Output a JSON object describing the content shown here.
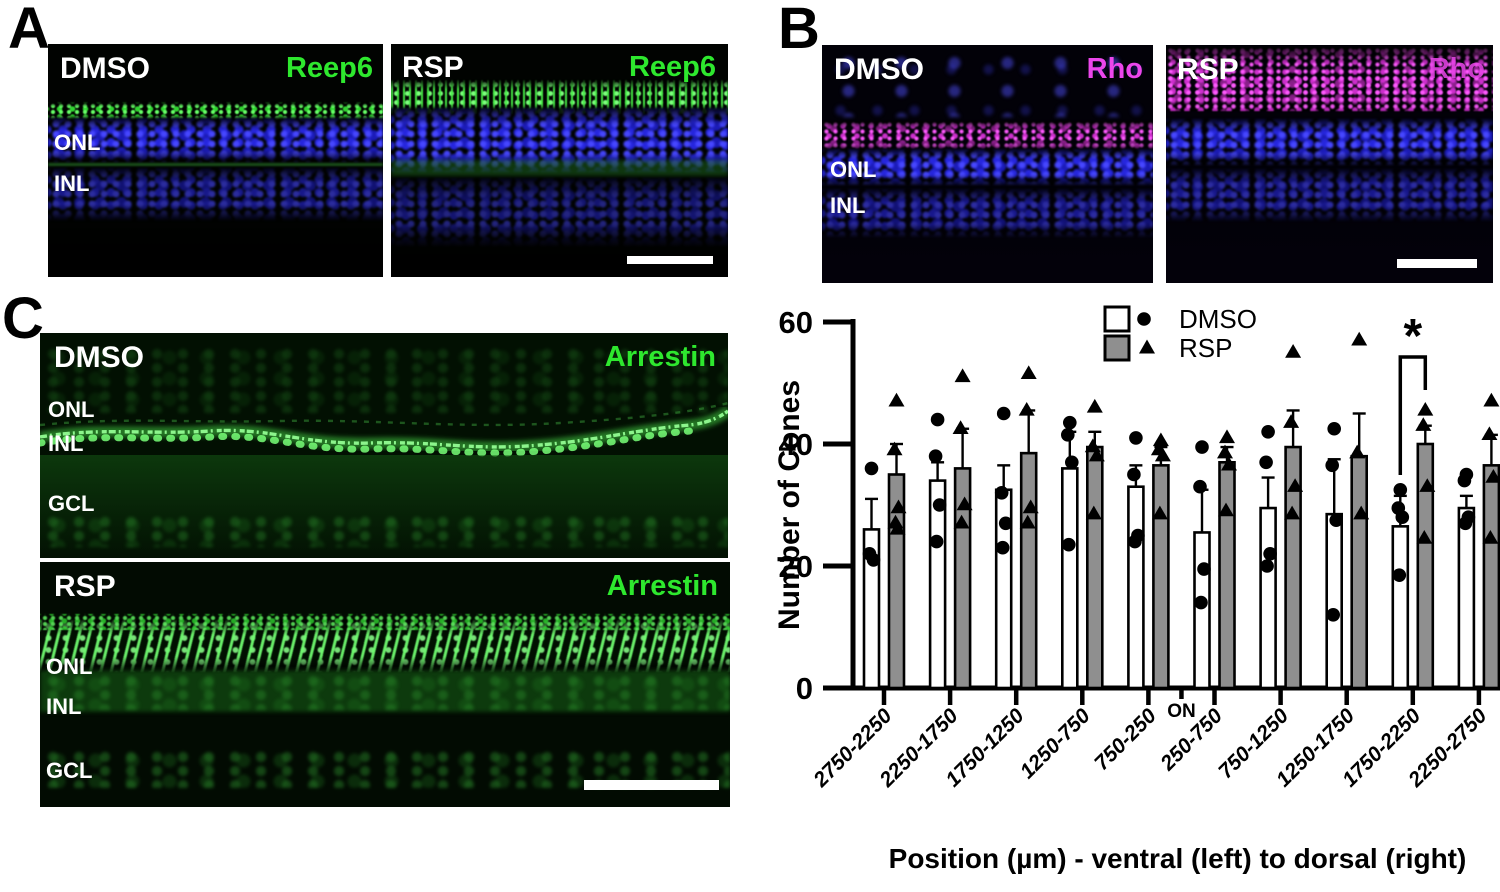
{
  "colors": {
    "green_label": "#2ee82e",
    "magenta_label": "#ec46ec",
    "blue_nuclei": "#2626dd",
    "dmso_bar": "#ffffff",
    "rsp_bar": "#8f8f8f",
    "axis": "#000000",
    "scalebar": "#ffffff"
  },
  "panels": {
    "A": {
      "letter": "A",
      "left": {
        "treatment": "DMSO",
        "marker": "Reep6",
        "layers": {
          "onl": "ONL",
          "inl": "INL"
        }
      },
      "right": {
        "treatment": "RSP",
        "marker": "Reep6",
        "has_scale_bar": true
      }
    },
    "B": {
      "letter": "B",
      "left": {
        "treatment": "DMSO",
        "marker": "Rho",
        "layers": {
          "onl": "ONL",
          "inl": "INL"
        }
      },
      "right": {
        "treatment": "RSP",
        "marker": "Rho",
        "has_scale_bar": true
      }
    },
    "C": {
      "letter": "C",
      "top": {
        "treatment": "DMSO",
        "marker": "Arrestin",
        "layers": {
          "onl": "ONL",
          "inl": "INL",
          "gcl": "GCL"
        }
      },
      "bottom": {
        "treatment": "RSP",
        "marker": "Arrestin",
        "layers": {
          "onl": "ONL",
          "inl": "INL",
          "gcl": "GCL"
        },
        "has_scale_bar": true
      }
    }
  },
  "chart_data": {
    "type": "bar",
    "title": "",
    "ylabel": "Number of Cones",
    "xlabel": "Position (µm) - ventral (left) to dorsal (right)",
    "ylim": [
      0,
      60
    ],
    "yticks": [
      0,
      20,
      40,
      60
    ],
    "grid": false,
    "legend_position": "top-center",
    "on_label": "ON",
    "on_between_indices": [
      4,
      5
    ],
    "categories": [
      "2750-2250",
      "2250-1750",
      "1750-1250",
      "1250-750",
      "750-250",
      "250-750",
      "750-1250",
      "1250-1750",
      "1750-2250",
      "2250-2750"
    ],
    "legend": {
      "items": [
        {
          "label": "DMSO",
          "fill": "#ffffff",
          "marker": "circle"
        },
        {
          "label": "RSP",
          "fill": "#8f8f8f",
          "marker": "triangle"
        }
      ]
    },
    "series": [
      {
        "name": "DMSO",
        "means": [
          26,
          34,
          32.5,
          36,
          33,
          25.5,
          29.5,
          28.5,
          26.5,
          29.5
        ],
        "sem": [
          5,
          3,
          4,
          6,
          3.5,
          7,
          5,
          9,
          5,
          2
        ],
        "points": [
          [
            36,
            22,
            21
          ],
          [
            44,
            38,
            30,
            24
          ],
          [
            45,
            32,
            27,
            23
          ],
          [
            43.5,
            41.5,
            37,
            23.5
          ],
          [
            41,
            35,
            25,
            24
          ],
          [
            39.5,
            33,
            19.5,
            14
          ],
          [
            42,
            37,
            22,
            20
          ],
          [
            42.5,
            36.5,
            27.5,
            12
          ],
          [
            32.5,
            29.5,
            28,
            18.5
          ],
          [
            35,
            34,
            28,
            27
          ]
        ]
      },
      {
        "name": "RSP",
        "means": [
          35,
          36,
          38.5,
          39.5,
          36.5,
          37,
          39.5,
          38,
          40,
          36.5
        ],
        "sem": [
          5,
          6.5,
          7,
          2.5,
          3,
          2.5,
          6,
          7,
          3,
          5
        ],
        "points": [
          [
            47,
            39,
            29.5,
            27,
            26
          ],
          [
            51,
            42.5,
            30,
            27
          ],
          [
            51.5,
            45.5,
            29.5,
            27
          ],
          [
            46,
            39.5,
            38,
            28.5
          ],
          [
            40.5,
            39,
            38,
            28.5
          ],
          [
            41,
            38.5,
            36.5,
            29
          ],
          [
            55,
            43.5,
            33,
            28.5
          ],
          [
            57,
            38.5,
            28.5
          ],
          [
            45.5,
            43,
            33,
            24.5
          ],
          [
            47,
            41.5,
            34.5,
            24.5
          ]
        ]
      }
    ],
    "significance": [
      {
        "group": "1750-2250",
        "group_index": 8,
        "label": "*",
        "between": [
          "DMSO",
          "RSP"
        ]
      }
    ]
  }
}
